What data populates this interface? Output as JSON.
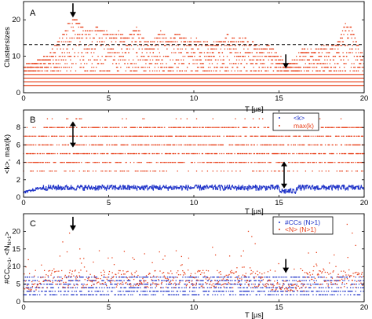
{
  "colors": {
    "red": "#e8401a",
    "blue": "#1f33c8",
    "black": "#000000"
  },
  "chart_data": [
    {
      "type": "scatter",
      "panel": "A",
      "xlabel": "T [µs]",
      "ylabel": "Clustersizes",
      "xlim": [
        0,
        20
      ],
      "ylim": [
        0,
        25
      ],
      "xticks": [
        0,
        5,
        10,
        15,
        20
      ],
      "yticks": [
        0,
        10,
        20
      ],
      "grid": false,
      "reference_line": {
        "y": 13.2,
        "style": "dashed"
      },
      "arrows": [
        {
          "x": 2.9,
          "y": 21.5,
          "direction": "down"
        },
        {
          "x": 15.4,
          "y": 7.5,
          "direction": "down"
        }
      ],
      "series": [
        {
          "color": "red",
          "constant_levels": [
            2,
            3,
            4,
            5
          ],
          "upper_envelope": {
            "x": [
              0,
              0.5,
              1,
              1.5,
              2,
              2.5,
              2.9,
              3.3,
              3.8,
              4.3,
              5,
              5.5,
              6,
              6.6,
              7,
              7.5,
              8,
              8.5,
              9,
              9.5,
              10,
              10.5,
              11,
              11.5,
              12,
              12.5,
              13,
              13.5,
              14,
              14.5,
              15,
              15.4,
              15.9,
              16.4,
              17,
              17.5,
              18,
              18.5,
              18.9,
              19.3,
              19.7,
              20
            ],
            "values": [
              7,
              8,
              9,
              10,
              14,
              18,
              21,
              19,
              17,
              18,
              16,
              17,
              15,
              18,
              15,
              14,
              17,
              14,
              16,
              15,
              14,
              15,
              13,
              14,
              16,
              14,
              15,
              13,
              12,
              13,
              10,
              7,
              9,
              12,
              11,
              13,
              12,
              14,
              20,
              17,
              12,
              10
            ]
          }
        }
      ]
    },
    {
      "type": "scatter",
      "panel": "B",
      "xlabel": "T [µs]",
      "ylabel": "<k>, max(k)",
      "xlim": [
        0,
        20
      ],
      "ylim": [
        0,
        10
      ],
      "xticks": [
        0,
        5,
        10,
        15,
        20
      ],
      "yticks": [
        0,
        2,
        4,
        6,
        8
      ],
      "grid": false,
      "legend": {
        "placement": "top-right",
        "entries": [
          "<k>",
          "max(k)"
        ]
      },
      "arrows": [
        {
          "x": 2.9,
          "y_from": 5.8,
          "y_to": 8.6,
          "direction": "both"
        },
        {
          "x": 15.3,
          "y_from": 1.1,
          "y_to": 4.0,
          "direction": "both"
        }
      ],
      "series": [
        {
          "name": "<k>",
          "color": "blue",
          "mean": 1.1,
          "amplitude": 0.3
        },
        {
          "name": "max(k)",
          "color": "red",
          "levels": [
            4,
            5,
            6,
            7,
            8,
            9
          ]
        }
      ]
    },
    {
      "type": "scatter",
      "panel": "C",
      "xlabel": "T [µs]",
      "ylabel": "#CC_N>1, <N_N>1>",
      "ylabel_parts": {
        "a": "#CC",
        "a_sub": "N>1",
        "sep": ", <N",
        "b_sub": "N>1",
        "end": ">"
      },
      "xlim": [
        0,
        20
      ],
      "ylim": [
        0,
        25
      ],
      "xticks": [
        0,
        5,
        10,
        15,
        20
      ],
      "yticks": [
        0,
        5,
        10,
        15,
        20
      ],
      "grid": false,
      "legend": {
        "placement": "top-right",
        "entries": [
          "#CCs (N>1)",
          "<N> (N>1)"
        ]
      },
      "arrows": [
        {
          "x": 2.9,
          "y": 21.0,
          "direction": "down"
        },
        {
          "x": 15.4,
          "y": 9.0,
          "direction": "down"
        }
      ],
      "series": [
        {
          "name": "#CCs (N>1)",
          "color": "blue",
          "levels": [
            2,
            3,
            4,
            5,
            6,
            7
          ]
        },
        {
          "name": "<N> (N>1)",
          "color": "red",
          "mean": 6.5,
          "outliers": [
            {
              "x": 2.3,
              "y": 17
            },
            {
              "x": 2.7,
              "y": 19.5
            },
            {
              "x": 3.3,
              "y": 15
            },
            {
              "x": 5.2,
              "y": 12.5
            },
            {
              "x": 6.5,
              "y": 12
            },
            {
              "x": 8.3,
              "y": 13
            },
            {
              "x": 12.1,
              "y": 13
            },
            {
              "x": 13.2,
              "y": 20
            },
            {
              "x": 13.4,
              "y": 18.5
            },
            {
              "x": 13.6,
              "y": 16.5
            },
            {
              "x": 17.2,
              "y": 14
            },
            {
              "x": 19.0,
              "y": 22
            },
            {
              "x": 19.3,
              "y": 19.5
            },
            {
              "x": 19.5,
              "y": 16
            }
          ]
        }
      ]
    }
  ]
}
